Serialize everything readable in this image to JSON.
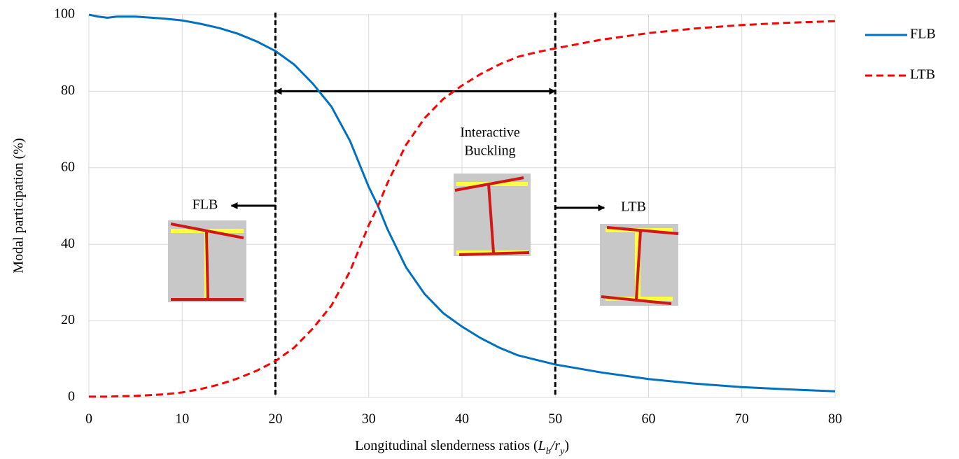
{
  "chart_data": {
    "type": "line",
    "x": [
      0,
      1,
      2,
      3,
      5,
      8,
      10,
      12,
      14,
      16,
      18,
      20,
      22,
      24,
      26,
      28,
      30,
      31,
      32,
      34,
      36,
      38,
      40,
      42,
      44,
      46,
      48,
      50,
      55,
      60,
      65,
      70,
      75,
      80
    ],
    "series": [
      {
        "name": "FLB",
        "color": "#0070c0",
        "dash": false,
        "values": [
          100,
          99.5,
          99.2,
          99.5,
          99.5,
          99,
          98.5,
          97.6,
          96.5,
          95,
          93,
          90.5,
          87,
          82,
          76,
          67,
          55,
          50,
          44,
          34,
          27,
          22,
          18.5,
          15.5,
          13,
          11,
          9.8,
          8.6,
          6.5,
          4.8,
          3.6,
          2.7,
          2.1,
          1.6
        ]
      },
      {
        "name": "LTB",
        "color": "#ff0000",
        "dash": true,
        "values": [
          0.2,
          0.2,
          0.2,
          0.3,
          0.4,
          0.8,
          1.3,
          2.2,
          3.4,
          5,
          7,
          9.5,
          13,
          18,
          24,
          33,
          45,
          50,
          56,
          66,
          73,
          78,
          81.5,
          84.5,
          87,
          89,
          90.2,
          91.2,
          93.5,
          95.2,
          96.4,
          97.3,
          97.9,
          98.3
        ]
      }
    ],
    "xlim": [
      0,
      80
    ],
    "xticks": [
      0,
      10,
      20,
      30,
      40,
      50,
      60,
      70,
      80
    ],
    "ylim": [
      0,
      100
    ],
    "yticks": [
      0,
      20,
      40,
      60,
      80,
      100
    ],
    "grid": true,
    "legend": "right",
    "ylabel": "Modal participation (%)",
    "xlabel": [
      "Longitudinal slenderness ratios (",
      "L",
      "b",
      "/",
      "r",
      "y",
      ")"
    ],
    "vlines": [
      20,
      50
    ],
    "annotations": {
      "left": "FLB",
      "middle": [
        "Interactive",
        "Buckling"
      ],
      "right": "LTB"
    }
  }
}
